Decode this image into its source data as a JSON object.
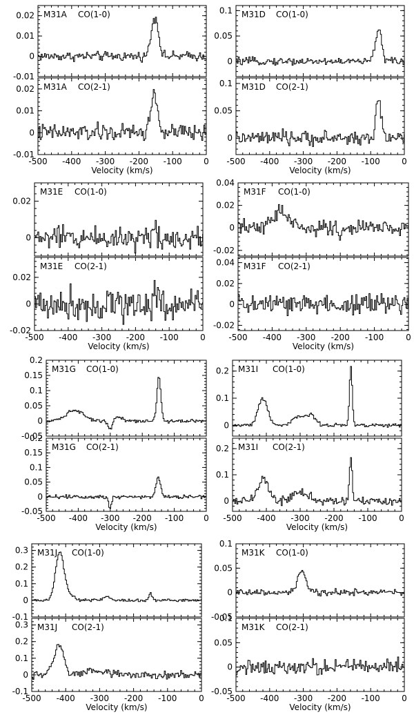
{
  "chart_data": [
    {
      "type": "line",
      "source": "M31A",
      "line": "CO(1-0)",
      "xlim": [
        -500,
        0
      ],
      "ylim": [
        -0.01,
        0.025
      ],
      "yticks": [
        -0.01,
        0,
        0.01,
        0.02
      ],
      "ytick_labels": [
        "-0.01",
        "0",
        "0.01",
        "0.02"
      ],
      "noise": 0.0016,
      "series": [
        {
          "name": "",
          "peaks": [
            {
              "v": -150,
              "amp": 0.018,
              "w": 9
            },
            {
              "v": -163,
              "amp": 0.006,
              "w": 7
            }
          ]
        }
      ]
    },
    {
      "type": "line",
      "source": "M31A",
      "line": "CO(2-1)",
      "xlim": [
        -500,
        0
      ],
      "ylim": [
        -0.01,
        0.025
      ],
      "yticks": [
        -0.01,
        0,
        0.01,
        0.02
      ],
      "ytick_labels": [
        "-0.01",
        "0",
        "0.01",
        "0.02"
      ],
      "xticks": [
        -500,
        -400,
        -300,
        -200,
        -100,
        0
      ],
      "xtick_labels": [
        "-500",
        "-400",
        "-300",
        "-200",
        "-100",
        "0"
      ],
      "xlabel": "Velocity (km/s)",
      "noise": 0.0028,
      "series": [
        {
          "name": "",
          "peaks": [
            {
              "v": -152,
              "amp": 0.017,
              "w": 8
            },
            {
              "v": -165,
              "amp": 0.006,
              "w": 6
            }
          ]
        }
      ]
    },
    {
      "type": "line",
      "source": "M31D",
      "line": "CO(1-0)",
      "xlim": [
        -500,
        0
      ],
      "ylim": [
        -0.03,
        0.11
      ],
      "yticks": [
        0,
        0.05,
        0.1
      ],
      "ytick_labels": [
        "0",
        "0.05",
        "0.1"
      ],
      "noise": 0.005,
      "series": [
        {
          "name": "",
          "peaks": [
            {
              "v": -75,
              "amp": 0.065,
              "w": 8
            },
            {
              "v": -88,
              "amp": 0.012,
              "w": 6
            }
          ]
        }
      ]
    },
    {
      "type": "line",
      "source": "M31D",
      "line": "CO(2-1)",
      "xlim": [
        -500,
        0
      ],
      "ylim": [
        -0.03,
        0.11
      ],
      "yticks": [
        0,
        0.05,
        0.1
      ],
      "ytick_labels": [
        "0",
        "0.05",
        "0.1"
      ],
      "xticks": [
        -500,
        -400,
        -300,
        -200,
        -100,
        0
      ],
      "xtick_labels": [
        "-500",
        "-400",
        "-300",
        "-200",
        "-100",
        "0"
      ],
      "xlabel": "Velocity (km/s)",
      "noise": 0.009,
      "series": [
        {
          "name": "",
          "peaks": [
            {
              "v": -77,
              "amp": 0.07,
              "w": 7
            },
            {
              "v": -60,
              "amp": 0.012,
              "w": 5
            }
          ]
        }
      ]
    },
    {
      "type": "line",
      "source": "M31E",
      "line": "CO(1-0)",
      "xlim": [
        -500,
        0
      ],
      "ylim": [
        -0.01,
        0.03
      ],
      "yticks": [
        0,
        0.02
      ],
      "ytick_labels": [
        "0",
        "0.02"
      ],
      "noise": 0.0045,
      "series": [
        {
          "name": "",
          "peaks": [
            {
              "v": -142,
              "amp": 0.007,
              "w": 5
            }
          ]
        }
      ]
    },
    {
      "type": "line",
      "source": "M31E",
      "line": "CO(2-1)",
      "xlim": [
        -500,
        0
      ],
      "ylim": [
        -0.02,
        0.035
      ],
      "yticks": [
        -0.02,
        0,
        0.02
      ],
      "ytick_labels": [
        "-0.02",
        "0",
        "0.02"
      ],
      "xticks": [
        -500,
        -400,
        -300,
        -200,
        -100,
        0
      ],
      "xtick_labels": [
        "-500",
        "-400",
        "-300",
        "-200",
        "-100",
        "0"
      ],
      "xlabel": "Velocity (km/s)",
      "noise": 0.009,
      "series": [
        {
          "name": "",
          "peaks": [
            {
              "v": -142,
              "amp": 0.012,
              "w": 4
            }
          ]
        }
      ]
    },
    {
      "type": "line",
      "source": "M31F",
      "line": "CO(1-0)",
      "xlim": [
        -500,
        0
      ],
      "ylim": [
        -0.025,
        0.04
      ],
      "yticks": [
        -0.02,
        0,
        0.02,
        0.04
      ],
      "ytick_labels": [
        "-0.02",
        "0",
        "0.02",
        "0.04"
      ],
      "noise": 0.005,
      "series": [
        {
          "name": "",
          "peaks": [
            {
              "v": -375,
              "amp": 0.016,
              "w": 20
            },
            {
              "v": -200,
              "amp": -0.008,
              "w": 7
            }
          ]
        }
      ]
    },
    {
      "type": "line",
      "source": "M31F",
      "line": "CO(2-1)",
      "xlim": [
        -500,
        0
      ],
      "ylim": [
        -0.025,
        0.045
      ],
      "yticks": [
        -0.02,
        0,
        0.02,
        0.04
      ],
      "ytick_labels": [
        "-0.02",
        "0",
        "0.02",
        "0.04"
      ],
      "xticks": [
        -500,
        -400,
        -300,
        -200,
        -100,
        0
      ],
      "xtick_labels": [
        "-500",
        "-400",
        "-300",
        "-200",
        "-100",
        "0"
      ],
      "xlabel": "Velocity (km/s)",
      "noise": 0.0075,
      "series": [
        {
          "name": "",
          "peaks": []
        }
      ]
    },
    {
      "type": "line",
      "source": "M31G",
      "line": "CO(1-0)",
      "xlim": [
        -500,
        0
      ],
      "ylim": [
        -0.05,
        0.2
      ],
      "yticks": [
        -0.05,
        0,
        0.05,
        0.1,
        0.15,
        0.2
      ],
      "ytick_labels": [
        "-0.05",
        "0",
        "0.05",
        "0.1",
        "0.15",
        "0.2"
      ],
      "noise": 0.004,
      "series": [
        {
          "name": "",
          "peaks": [
            {
              "v": -148,
              "amp": 0.145,
              "w": 6
            },
            {
              "v": -410,
              "amp": 0.035,
              "w": 28
            },
            {
              "v": -300,
              "amp": -0.03,
              "w": 6
            },
            {
              "v": -275,
              "amp": 0.016,
              "w": 12
            }
          ]
        }
      ]
    },
    {
      "type": "line",
      "source": "M31G",
      "line": "CO(2-1)",
      "xlim": [
        -500,
        0
      ],
      "ylim": [
        -0.05,
        0.2
      ],
      "yticks": [
        -0.05,
        0,
        0.05,
        0.1,
        0.15,
        0.2
      ],
      "ytick_labels": [
        "-0.05",
        "0",
        "0.05",
        "0.1",
        "0.15",
        "0.2"
      ],
      "xticks": [
        -500,
        -400,
        -300,
        -200,
        -100,
        0
      ],
      "xtick_labels": [
        "-500",
        "-400",
        "-300",
        "-200",
        "-100",
        "0"
      ],
      "xlabel": "Velocity (km/s)",
      "noise": 0.005,
      "series": [
        {
          "name": "",
          "peaks": [
            {
              "v": -150,
              "amp": 0.07,
              "w": 7
            },
            {
              "v": -300,
              "amp": -0.04,
              "w": 4
            }
          ]
        }
      ]
    },
    {
      "type": "line",
      "source": "M31I",
      "line": "CO(1-0)",
      "xlim": [
        -500,
        0
      ],
      "ylim": [
        -0.04,
        0.24
      ],
      "yticks": [
        0,
        0.1,
        0.2
      ],
      "ytick_labels": [
        "0",
        "0.1",
        "0.2"
      ],
      "noise": 0.005,
      "series": [
        {
          "name": "",
          "peaks": [
            {
              "v": -410,
              "amp": 0.1,
              "w": 14
            },
            {
              "v": -150,
              "amp": 0.22,
              "w": 4
            },
            {
              "v": -300,
              "amp": 0.035,
              "w": 20
            },
            {
              "v": -265,
              "amp": 0.03,
              "w": 12
            }
          ]
        }
      ]
    },
    {
      "type": "line",
      "source": "M31I",
      "line": "CO(2-1)",
      "xlim": [
        -500,
        0
      ],
      "ylim": [
        -0.04,
        0.24
      ],
      "yticks": [
        0,
        0.1,
        0.2
      ],
      "ytick_labels": [
        "0",
        "0.1",
        "0.2"
      ],
      "xticks": [
        -500,
        -400,
        -300,
        -200,
        -100,
        0
      ],
      "xtick_labels": [
        "-500",
        "-400",
        "-300",
        "-200",
        "-100",
        "0"
      ],
      "xlabel": "Velocity (km/s)",
      "noise": 0.012,
      "series": [
        {
          "name": "",
          "peaks": [
            {
              "v": -410,
              "amp": 0.09,
              "w": 14
            },
            {
              "v": -150,
              "amp": 0.17,
              "w": 4
            },
            {
              "v": -300,
              "amp": 0.03,
              "w": 25
            }
          ]
        }
      ]
    },
    {
      "type": "line",
      "source": "M31J",
      "line": "CO(1-0)",
      "xlim": [
        -500,
        0
      ],
      "ylim": [
        -0.1,
        0.34
      ],
      "yticks": [
        -0.1,
        0,
        0.1,
        0.2,
        0.3
      ],
      "ytick_labels": [
        "-0.1",
        "0",
        "0.1",
        "0.2",
        "0.3"
      ],
      "noise": 0.006,
      "series": [
        {
          "name": "",
          "peaks": [
            {
              "v": -418,
              "amp": 0.28,
              "w": 12
            },
            {
              "v": -395,
              "amp": 0.04,
              "w": 15
            },
            {
              "v": -280,
              "amp": 0.025,
              "w": 8
            },
            {
              "v": -150,
              "amp": 0.04,
              "w": 5
            }
          ]
        }
      ]
    },
    {
      "type": "line",
      "source": "M31J",
      "line": "CO(2-1)",
      "xlim": [
        -500,
        0
      ],
      "ylim": [
        -0.1,
        0.34
      ],
      "yticks": [
        -0.1,
        0,
        0.1,
        0.2,
        0.3
      ],
      "ytick_labels": [
        "-0.1",
        "0",
        "0.1",
        "0.2",
        "0.3"
      ],
      "xticks": [
        -500,
        -400,
        -300,
        -200,
        -100,
        0
      ],
      "xtick_labels": [
        "-500",
        "-400",
        "-300",
        "-200",
        "-100",
        "0"
      ],
      "xlabel": "Velocity (km/s)",
      "noise": 0.018,
      "series": [
        {
          "name": "",
          "peaks": [
            {
              "v": -420,
              "amp": 0.18,
              "w": 14
            },
            {
              "v": -300,
              "amp": 0.02,
              "w": 30
            }
          ]
        }
      ]
    },
    {
      "type": "line",
      "source": "M31K",
      "line": "CO(1-0)",
      "xlim": [
        -500,
        0
      ],
      "ylim": [
        -0.05,
        0.1
      ],
      "yticks": [
        -0.05,
        0,
        0.05,
        0.1
      ],
      "ytick_labels": [
        "-0.05",
        "0",
        "0.05",
        "0.1"
      ],
      "noise": 0.0045,
      "series": [
        {
          "name": "",
          "peaks": [
            {
              "v": -305,
              "amp": 0.045,
              "w": 12
            }
          ]
        }
      ]
    },
    {
      "type": "line",
      "source": "M31K",
      "line": "CO(2-1)",
      "xlim": [
        -500,
        0
      ],
      "ylim": [
        -0.05,
        0.1
      ],
      "yticks": [
        -0.05,
        0,
        0.05,
        0.1
      ],
      "ytick_labels": [
        "-0.05",
        "0",
        "0.05",
        "0.1"
      ],
      "xticks": [
        -500,
        -400,
        -300,
        -200,
        -100,
        0
      ],
      "xtick_labels": [
        "-500",
        "-400",
        "-300",
        "-200",
        "-100",
        "0"
      ],
      "xlabel": "Velocity (km/s)",
      "noise": 0.011,
      "series": [
        {
          "name": "",
          "peaks": []
        }
      ]
    }
  ]
}
